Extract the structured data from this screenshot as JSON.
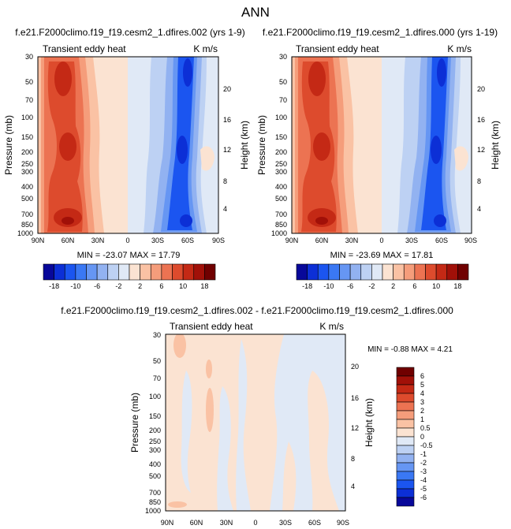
{
  "figure": {
    "title": "ANN"
  },
  "levels": {
    "main": [
      -18,
      -14,
      -10,
      -8,
      -6,
      -4,
      -2,
      0,
      2,
      4,
      6,
      8,
      10,
      14,
      18
    ],
    "main_labels": [
      "-18",
      "-10",
      "-6",
      "-2",
      "2",
      "6",
      "10",
      "18"
    ],
    "diff": [
      -6,
      -5,
      -4,
      -3,
      -2,
      -1,
      -0.5,
      0,
      0.5,
      1,
      2,
      3,
      4,
      5,
      6
    ],
    "diff_labels": [
      "-6",
      "-5",
      "-4",
      "-3",
      "-2",
      "-1",
      "-0.5",
      "0",
      "0.5",
      "1",
      "2",
      "3",
      "4",
      "5",
      "6"
    ]
  },
  "colors": {
    "main": [
      "#08089a",
      "#0c2fd6",
      "#1b55f0",
      "#3a78f4",
      "#6696f3",
      "#92b2f1",
      "#bdd1f3",
      "#e0e9f6",
      "#fbe3d2",
      "#fac2a4",
      "#f59d7b",
      "#ec7352",
      "#dd4b2d",
      "#c42915",
      "#a11008",
      "#700000"
    ],
    "diff": [
      "#08089a",
      "#0c2fd6",
      "#1b55f0",
      "#3a78f4",
      "#6696f3",
      "#92b2f1",
      "#bdd1f3",
      "#e0e9f6",
      "#fbe3d2",
      "#fac2a4",
      "#f59d7b",
      "#ec7352",
      "#dd4b2d",
      "#c42915",
      "#a11008",
      "#700000"
    ]
  },
  "chart_data": [
    {
      "type": "heatmap",
      "title": "f.e21.F2000climo.f19_f19.cesm2_1.dfires.002 (yrs 1-9)",
      "subtitle_left": "Transient eddy heat",
      "subtitle_right": "K m/s",
      "ylabel": "Pressure (mb)",
      "y2label": "Height (km)",
      "x_ticks": [
        "90N",
        "60N",
        "30N",
        "0",
        "30S",
        "60S",
        "90S"
      ],
      "y_ticks": [
        30,
        50,
        70,
        100,
        150,
        200,
        250,
        300,
        400,
        500,
        700,
        850,
        1000
      ],
      "y2_ticks": [
        20,
        16,
        12,
        8,
        4
      ],
      "ylim": [
        1000,
        30
      ],
      "stats": {
        "min": -23.07,
        "max": 17.79,
        "text": "MIN = -23.07   MAX = 17.79"
      }
    },
    {
      "type": "heatmap",
      "title": "f.e21.F2000climo.f19_f19.cesm2_1.dfires.000 (yrs 1-19)",
      "subtitle_left": "Transient eddy heat",
      "subtitle_right": "K m/s",
      "ylabel": "Pressure (mb)",
      "y2label": "Height (km)",
      "x_ticks": [
        "90N",
        "60N",
        "30N",
        "0",
        "30S",
        "60S",
        "90S"
      ],
      "y_ticks": [
        30,
        50,
        70,
        100,
        150,
        200,
        250,
        300,
        400,
        500,
        700,
        850,
        1000
      ],
      "y2_ticks": [
        20,
        16,
        12,
        8,
        4
      ],
      "ylim": [
        1000,
        30
      ],
      "stats": {
        "min": -23.69,
        "max": 17.81,
        "text": "MIN = -23.69   MAX = 17.81"
      }
    },
    {
      "type": "heatmap",
      "title": "f.e21.F2000climo.f19_f19.cesm2_1.dfires.002 - f.e21.F2000climo.f19_f19.cesm2_1.dfires.000",
      "subtitle_left": "Transient eddy heat",
      "subtitle_right": "K m/s",
      "ylabel": "Pressure (mb)",
      "y2label": "Height (km)",
      "x_ticks": [
        "90N",
        "60N",
        "30N",
        "0",
        "30S",
        "60S",
        "90S"
      ],
      "y_ticks": [
        30,
        50,
        70,
        100,
        150,
        200,
        250,
        300,
        400,
        500,
        700,
        850,
        1000
      ],
      "y2_ticks": [
        20,
        16,
        12,
        8,
        4
      ],
      "ylim": [
        1000,
        30
      ],
      "stats": {
        "min": -0.88,
        "max": 4.21,
        "text": "MIN = -0.88   MAX =  4.21"
      }
    }
  ]
}
